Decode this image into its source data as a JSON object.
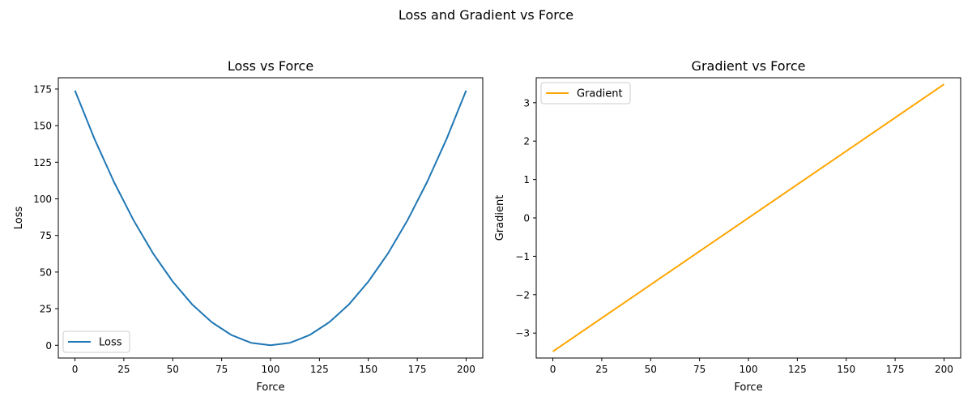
{
  "figure": {
    "suptitle": "Loss and Gradient vs Force"
  },
  "chart_data": [
    {
      "type": "line",
      "title": "Loss vs Force",
      "xlabel": "Force",
      "ylabel": "Loss",
      "xlim": [
        -8.5,
        208.5
      ],
      "ylim": [
        -8.7,
        182.7
      ],
      "xticks": [
        0,
        25,
        50,
        75,
        100,
        125,
        150,
        175,
        200
      ],
      "yticks": [
        0,
        25,
        50,
        75,
        100,
        125,
        150,
        175
      ],
      "xtick_labels": [
        "0",
        "25",
        "50",
        "75",
        "100",
        "125",
        "150",
        "175",
        "200"
      ],
      "ytick_labels": [
        "0",
        "25",
        "50",
        "75",
        "100",
        "125",
        "150",
        "175"
      ],
      "grid": false,
      "legend": "lower-left",
      "series": [
        {
          "name": "Loss",
          "color": "#1f77b4",
          "x": [
            0,
            10,
            20,
            30,
            40,
            50,
            60,
            70,
            80,
            90,
            100,
            110,
            120,
            130,
            140,
            150,
            160,
            170,
            180,
            190,
            200
          ],
          "y": [
            174,
            140.9,
            111.4,
            85.3,
            62.6,
            43.5,
            27.8,
            15.7,
            7.0,
            1.7,
            0,
            1.7,
            7.0,
            15.7,
            27.8,
            43.5,
            62.6,
            85.3,
            111.4,
            140.9,
            174
          ]
        }
      ]
    },
    {
      "type": "line",
      "title": "Gradient vs Force",
      "xlabel": "Force",
      "ylabel": "Gradient",
      "xlim": [
        -8.5,
        208.5
      ],
      "ylim": [
        -3.65,
        3.65
      ],
      "xticks": [
        0,
        25,
        50,
        75,
        100,
        125,
        150,
        175,
        200
      ],
      "yticks": [
        -3,
        -2,
        -1,
        0,
        1,
        2,
        3
      ],
      "xtick_labels": [
        "0",
        "25",
        "50",
        "75",
        "100",
        "125",
        "150",
        "175",
        "200"
      ],
      "ytick_labels": [
        "−3",
        "−2",
        "−1",
        "0",
        "1",
        "2",
        "3"
      ],
      "grid": false,
      "legend": "upper-left",
      "series": [
        {
          "name": "Gradient",
          "color": "#ffa500",
          "x": [
            0,
            200
          ],
          "y": [
            -3.48,
            3.48
          ]
        }
      ]
    }
  ]
}
